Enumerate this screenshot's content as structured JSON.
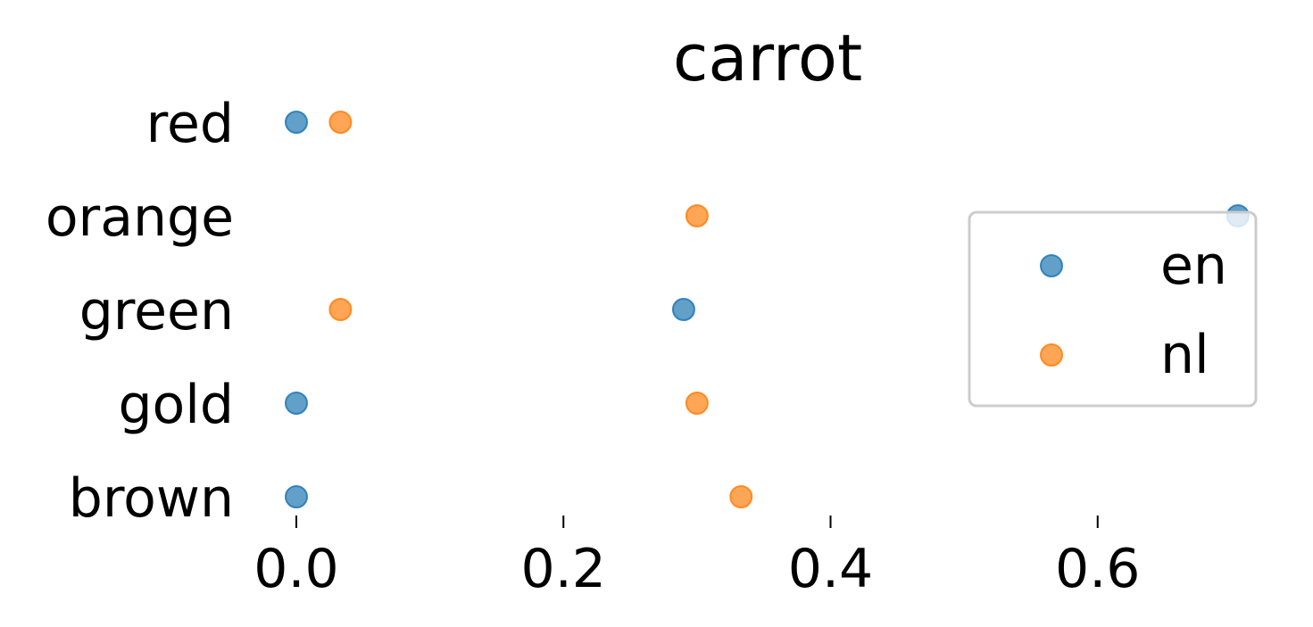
{
  "chart_data": {
    "type": "scatter",
    "title": "carrot",
    "xlabel": "",
    "ylabel": "",
    "categories": [
      "red",
      "orange",
      "green",
      "gold",
      "brown"
    ],
    "x_ticks": [
      "0.0",
      "0.2",
      "0.4",
      "0.6"
    ],
    "x_tick_values": [
      0.0,
      0.2,
      0.4,
      0.6
    ],
    "xlim": [
      0.0,
      0.72
    ],
    "grid": false,
    "legend_position": "right",
    "series": [
      {
        "name": "en",
        "color": "#1f77b4",
        "values": [
          0.0,
          0.705,
          0.29,
          0.0,
          0.0
        ]
      },
      {
        "name": "nl",
        "color": "#ff7f0e",
        "values": [
          0.033,
          0.3,
          0.033,
          0.3,
          0.333
        ]
      }
    ]
  }
}
